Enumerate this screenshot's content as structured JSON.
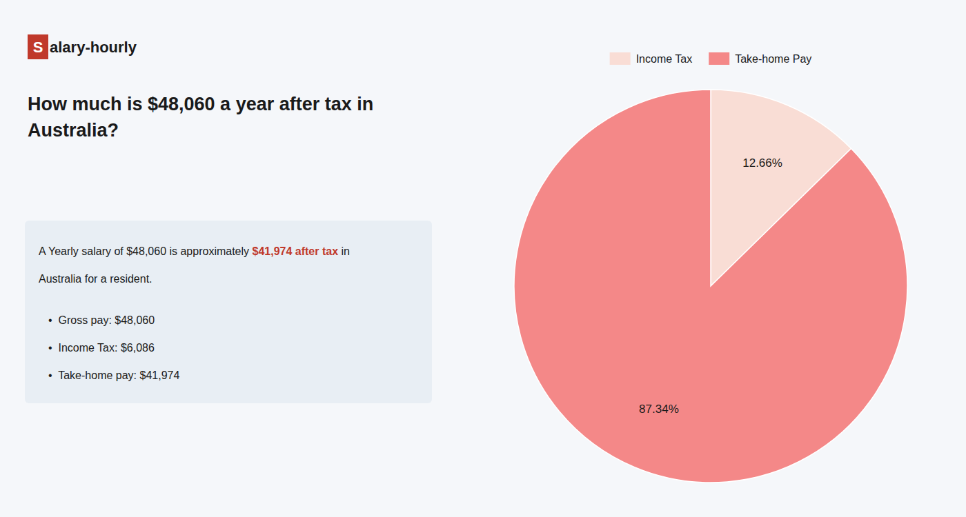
{
  "chart_data": {
    "type": "pie",
    "title": "How much is $48,060 a year after tax in\nAustralia?",
    "categories": [
      "Income Tax",
      "Take-home Pay"
    ],
    "values": [
      12.66,
      87.34
    ],
    "value_labels": [
      "12.66%",
      "87.34%"
    ],
    "colors": [
      "#f9ddd5",
      "#f48888"
    ],
    "data_labels": true,
    "legend": "top",
    "annotations": [
      "S",
      "alary-hourly",
      "A Yearly salary of $48,060 is approximately ",
      "$41,974 after tax",
      " in",
      "Australia for a resident.",
      "•  Gross pay: $48,060",
      "•  Income Tax: $6,086",
      "•  Take-home pay: $41,974"
    ]
  }
}
